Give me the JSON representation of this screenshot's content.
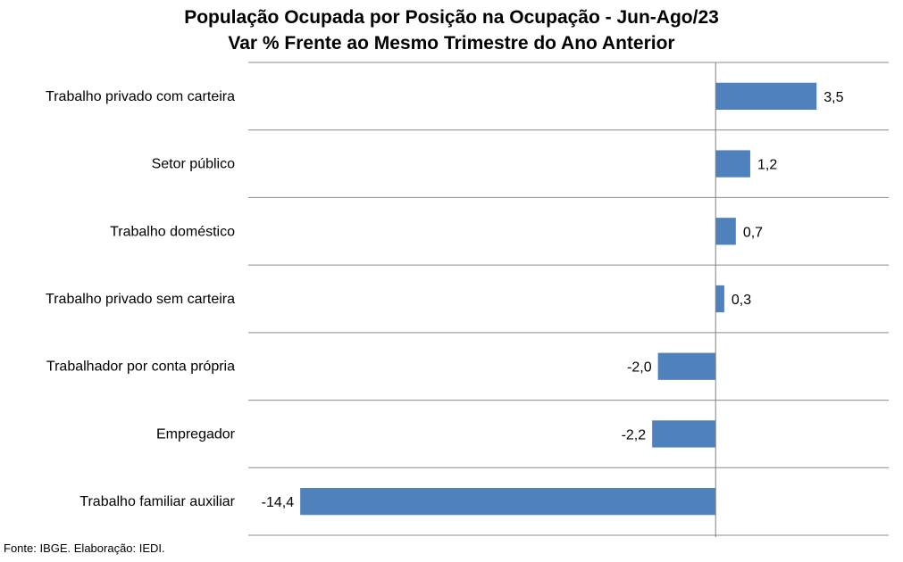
{
  "chart_data": {
    "type": "bar",
    "orientation": "horizontal",
    "title": "População Ocupada por Posição na Ocupação - Jun-Ago/23",
    "subtitle": "Var % Frente ao Mesmo Trimestre do Ano Anterior",
    "categories": [
      "Trabalho privado com carteira",
      "Setor público",
      "Trabalho doméstico",
      "Trabalho privado sem carteira",
      "Trabalhador por conta própria",
      "Empregador",
      "Trabalho familiar auxiliar"
    ],
    "values": [
      3.5,
      1.2,
      0.7,
      0.3,
      -2.0,
      -2.2,
      -14.4
    ],
    "value_labels": [
      "3,5",
      "1,2",
      "0,7",
      "0,3",
      "-2,0",
      "-2,2",
      "-14,4"
    ],
    "xlim": [
      -16.2,
      6.0
    ],
    "grid": true,
    "legend": "none",
    "bar_color": "#4f81bd"
  },
  "source": "Fonte: IBGE. Elaboração: IEDI."
}
